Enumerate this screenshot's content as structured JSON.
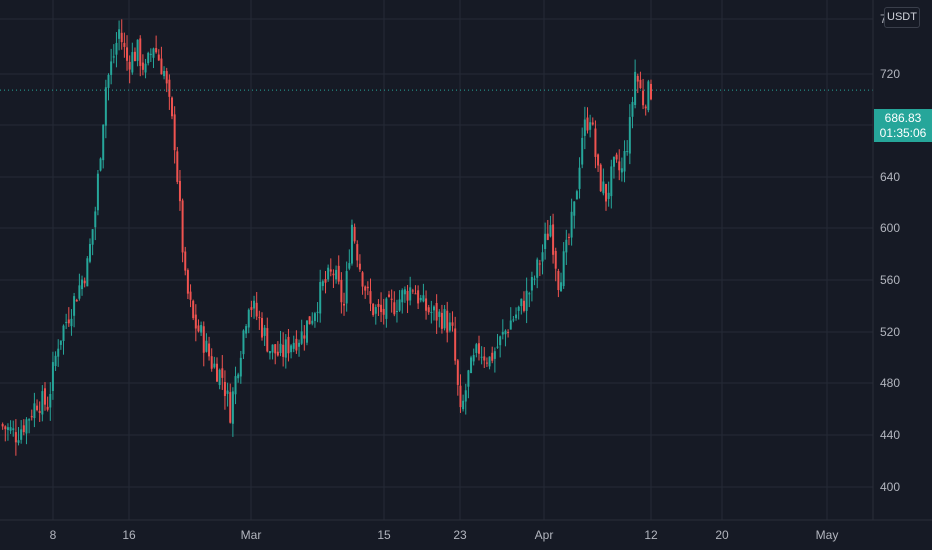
{
  "price_scale": {
    "currency": "USDT",
    "current_price": "686.83",
    "countdown": "01:35:06"
  },
  "colors": {
    "up": "#26a69a",
    "down": "#ef5350",
    "background": "#161a25",
    "grid": "#252a36",
    "text": "#b2b5be"
  },
  "chart_data": {
    "type": "candlestick",
    "title": "",
    "xlabel": "",
    "ylabel": "",
    "y_tick_labels": [
      "7",
      "720",
      "680",
      "640",
      "600",
      "560",
      "520",
      "480",
      "440",
      "400"
    ],
    "x_tick_labels": [
      "8",
      "16",
      "Mar",
      "15",
      "23",
      "Apr",
      "12",
      "20",
      "May"
    ],
    "ylim": [
      376,
      752
    ],
    "current_price": 686.83,
    "grid": true,
    "waypoints": [
      {
        "t": 0,
        "v": 445
      },
      {
        "t": 6,
        "v": 438
      },
      {
        "t": 10,
        "v": 448
      },
      {
        "t": 14,
        "v": 462
      },
      {
        "t": 18,
        "v": 460
      },
      {
        "t": 22,
        "v": 505
      },
      {
        "t": 26,
        "v": 525
      },
      {
        "t": 30,
        "v": 545
      },
      {
        "t": 33,
        "v": 560
      },
      {
        "t": 36,
        "v": 600
      },
      {
        "t": 40,
        "v": 690
      },
      {
        "t": 43,
        "v": 712
      },
      {
        "t": 45,
        "v": 730
      },
      {
        "t": 48,
        "v": 708
      },
      {
        "t": 52,
        "v": 715
      },
      {
        "t": 55,
        "v": 700
      },
      {
        "t": 58,
        "v": 720
      },
      {
        "t": 62,
        "v": 700
      },
      {
        "t": 66,
        "v": 650
      },
      {
        "t": 70,
        "v": 548
      },
      {
        "t": 73,
        "v": 520
      },
      {
        "t": 76,
        "v": 510
      },
      {
        "t": 80,
        "v": 490
      },
      {
        "t": 84,
        "v": 480
      },
      {
        "t": 87,
        "v": 455
      },
      {
        "t": 90,
        "v": 490
      },
      {
        "t": 94,
        "v": 535
      },
      {
        "t": 98,
        "v": 520
      },
      {
        "t": 102,
        "v": 500
      },
      {
        "t": 106,
        "v": 495
      },
      {
        "t": 110,
        "v": 505
      },
      {
        "t": 114,
        "v": 510
      },
      {
        "t": 118,
        "v": 525
      },
      {
        "t": 122,
        "v": 545
      },
      {
        "t": 126,
        "v": 555
      },
      {
        "t": 130,
        "v": 530
      },
      {
        "t": 133,
        "v": 590
      },
      {
        "t": 136,
        "v": 560
      },
      {
        "t": 140,
        "v": 530
      },
      {
        "t": 144,
        "v": 525
      },
      {
        "t": 148,
        "v": 530
      },
      {
        "t": 152,
        "v": 538
      },
      {
        "t": 156,
        "v": 545
      },
      {
        "t": 160,
        "v": 530
      },
      {
        "t": 164,
        "v": 525
      },
      {
        "t": 168,
        "v": 522
      },
      {
        "t": 171,
        "v": 510
      },
      {
        "t": 174,
        "v": 450
      },
      {
        "t": 177,
        "v": 480
      },
      {
        "t": 181,
        "v": 500
      },
      {
        "t": 185,
        "v": 492
      },
      {
        "t": 189,
        "v": 505
      },
      {
        "t": 193,
        "v": 520
      },
      {
        "t": 197,
        "v": 530
      },
      {
        "t": 201,
        "v": 545
      },
      {
        "t": 205,
        "v": 570
      },
      {
        "t": 208,
        "v": 590
      },
      {
        "t": 211,
        "v": 550
      },
      {
        "t": 214,
        "v": 570
      },
      {
        "t": 217,
        "v": 600
      },
      {
        "t": 220,
        "v": 655
      },
      {
        "t": 223,
        "v": 670
      },
      {
        "t": 226,
        "v": 625
      },
      {
        "t": 229,
        "v": 610
      },
      {
        "t": 232,
        "v": 630
      },
      {
        "t": 235,
        "v": 628
      },
      {
        "t": 238,
        "v": 660
      },
      {
        "t": 240,
        "v": 700
      },
      {
        "t": 243,
        "v": 680
      },
      {
        "t": 246,
        "v": 687
      }
    ]
  }
}
